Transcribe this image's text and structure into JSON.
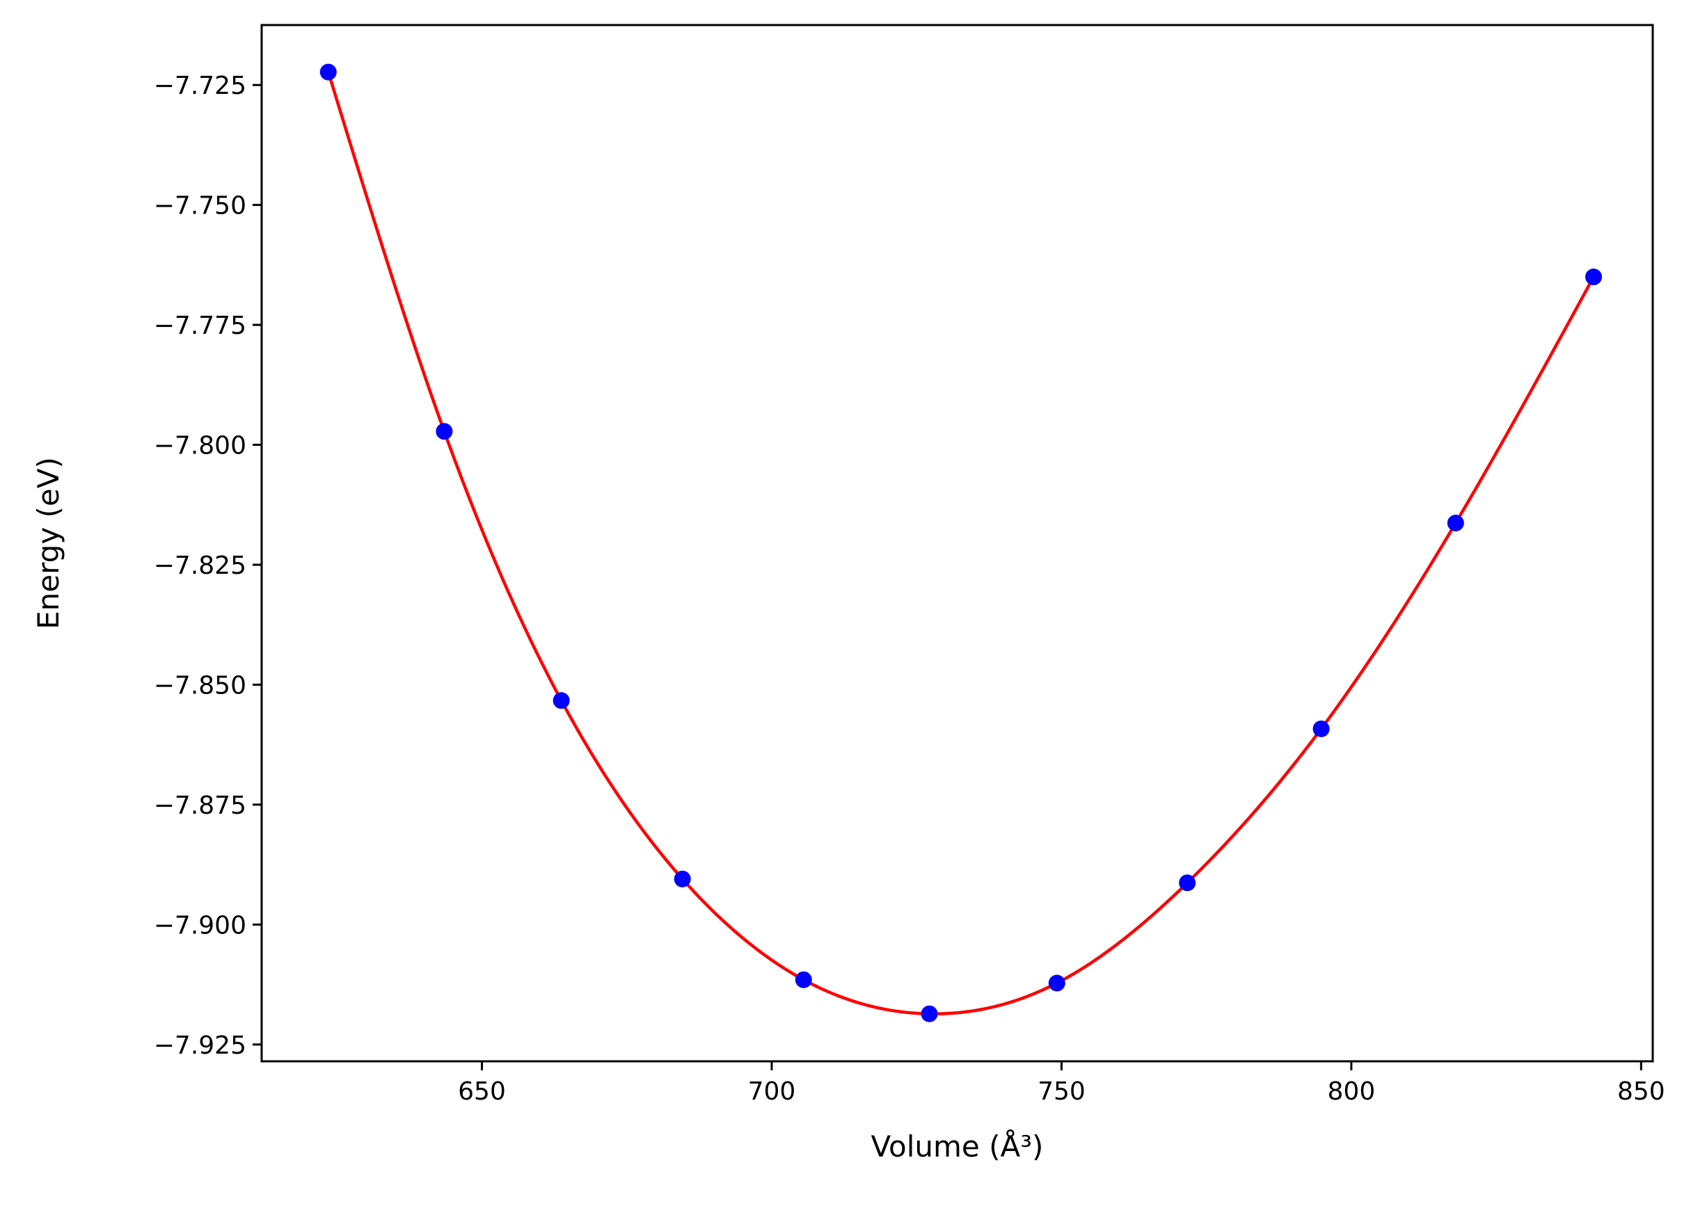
{
  "chart_data": {
    "type": "scatter",
    "xlabel": "Volume (Å³)",
    "ylabel": "Energy (eV)",
    "xlim": [
      612,
      852
    ],
    "ylim": [
      -7.9285,
      -7.7125
    ],
    "x_ticks": [
      650,
      700,
      750,
      800,
      850
    ],
    "x_tick_labels": [
      "650",
      "700",
      "750",
      "800",
      "850"
    ],
    "y_ticks": [
      -7.725,
      -7.75,
      -7.775,
      -7.8,
      -7.825,
      -7.85,
      -7.875,
      -7.9,
      -7.925
    ],
    "y_tick_labels": [
      "−7.725",
      "−7.750",
      "−7.775",
      "−7.800",
      "−7.825",
      "−7.850",
      "−7.875",
      "−7.900",
      "−7.925"
    ],
    "grid": false,
    "series": [
      {
        "kind": "points",
        "color": "#0000ff",
        "x": [
          623.5,
          643.5,
          663.7,
          684.6,
          705.5,
          727.2,
          749.2,
          771.7,
          794.8,
          818.0,
          841.8
        ],
        "y": [
          -7.7223,
          -7.7972,
          -7.8533,
          -7.8905,
          -7.9115,
          -7.9186,
          -7.9122,
          -7.8913,
          -7.8592,
          -7.8163,
          -7.765
        ]
      },
      {
        "kind": "fit-curve",
        "color": "#ff0000",
        "x_range": [
          623.5,
          841.8
        ]
      }
    ]
  }
}
